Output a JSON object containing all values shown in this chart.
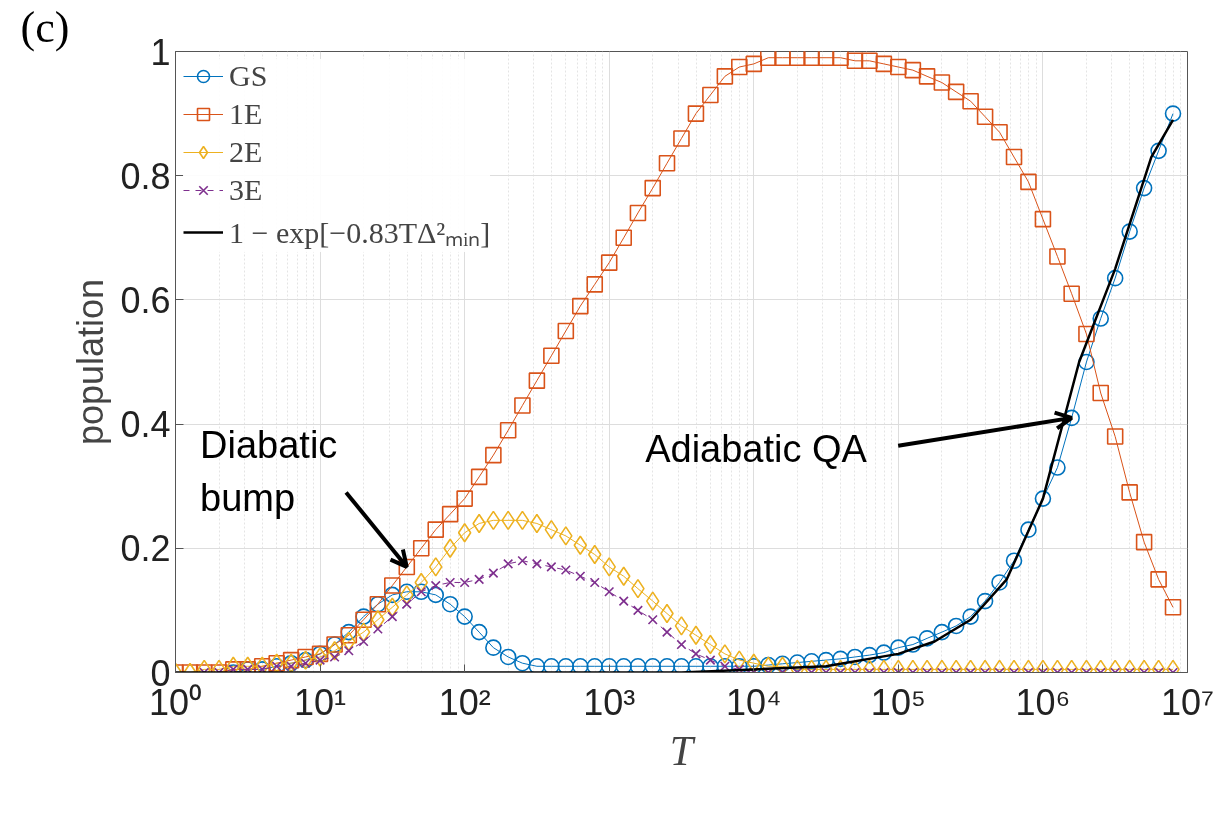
{
  "chart_data": {
    "type": "line",
    "xlabel": "T",
    "ylabel": "population",
    "log": "x",
    "grid": true,
    "legend": "top left",
    "xlim": [
      1,
      10000000
    ],
    "ylim": [
      0,
      1
    ],
    "xticks": [
      {
        "value": 1,
        "label": "10⁰"
      },
      {
        "value": 10,
        "label": "10¹"
      },
      {
        "value": 100,
        "label": "10²"
      },
      {
        "value": 1000,
        "label": "10³"
      },
      {
        "value": 10000,
        "label": "10⁴"
      },
      {
        "value": 100000,
        "label": "10⁵"
      },
      {
        "value": 1000000,
        "label": "10⁶"
      },
      {
        "value": 10000000,
        "label": "10⁷"
      }
    ],
    "yticks": [
      0,
      0.2,
      0.4,
      0.6,
      0.8,
      1
    ],
    "x": [
      1,
      1.26,
      1.58,
      2,
      2.51,
      3.16,
      3.98,
      5.01,
      6.31,
      7.94,
      10,
      12.6,
      15.8,
      20,
      25.1,
      31.6,
      39.8,
      50.1,
      63.1,
      79.4,
      100,
      126,
      158,
      200,
      251,
      316,
      398,
      501,
      631,
      794,
      1000,
      1260,
      1580,
      2000,
      2510,
      3160,
      3980,
      5010,
      6310,
      7940,
      10000,
      12600,
      15800,
      20000,
      25100,
      31600,
      39800,
      50100,
      63100,
      79400,
      100000,
      126000,
      158000,
      200000,
      251000,
      316000,
      398000,
      501000,
      631000,
      794000,
      1000000,
      1260000,
      1580000,
      2000000,
      2510000,
      3160000,
      3980000,
      5010000,
      6310000,
      7940000
    ],
    "series": [
      {
        "name": "GS",
        "color": "#0072bd",
        "marker": "circle",
        "line_style": "solid",
        "values": [
          null,
          null,
          null,
          null,
          0,
          0.005,
          0.005,
          0.01,
          0.015,
          0.02,
          0.03,
          0.045,
          0.065,
          0.09,
          0.11,
          0.125,
          0.13,
          0.13,
          0.125,
          0.11,
          0.09,
          0.065,
          0.04,
          0.025,
          0.015,
          0.01,
          0.01,
          0.01,
          0.01,
          0.01,
          0.01,
          0.01,
          0.01,
          0.01,
          0.01,
          0.01,
          0.01,
          0.01,
          0.01,
          0.01,
          0.01,
          0.012,
          0.014,
          0.016,
          0.018,
          0.02,
          0.022,
          0.025,
          0.028,
          0.032,
          0.04,
          0.045,
          0.055,
          0.065,
          0.075,
          0.09,
          0.115,
          0.145,
          0.18,
          0.23,
          0.28,
          0.33,
          0.41,
          0.5,
          0.57,
          0.635,
          0.71,
          0.78,
          0.84,
          0.9
        ]
      },
      {
        "name": "1E",
        "color": "#d95319",
        "marker": "square",
        "line_style": "solid",
        "values": [
          0,
          0,
          0,
          0,
          0.005,
          0.005,
          0.01,
          0.015,
          0.02,
          0.025,
          0.03,
          0.045,
          0.06,
          0.085,
          0.11,
          0.14,
          0.17,
          0.2,
          0.23,
          0.255,
          0.28,
          0.315,
          0.35,
          0.39,
          0.43,
          0.47,
          0.51,
          0.55,
          0.59,
          0.625,
          0.66,
          0.7,
          0.74,
          0.78,
          0.82,
          0.86,
          0.9,
          0.93,
          0.96,
          0.975,
          0.98,
          0.99,
          0.99,
          0.99,
          0.99,
          0.99,
          0.99,
          0.985,
          0.985,
          0.98,
          0.975,
          0.97,
          0.96,
          0.95,
          0.935,
          0.92,
          0.895,
          0.87,
          0.83,
          0.79,
          0.73,
          0.67,
          0.61,
          0.545,
          0.45,
          0.38,
          0.29,
          0.21,
          0.15,
          0.105
        ]
      },
      {
        "name": "2E",
        "color": "#edb120",
        "marker": "diamond",
        "line_style": "solid",
        "values": [
          0,
          0,
          0.005,
          0.005,
          0.01,
          0.01,
          0.01,
          0.015,
          0.015,
          0.02,
          0.025,
          0.035,
          0.05,
          0.065,
          0.085,
          0.105,
          0.125,
          0.145,
          0.17,
          0.2,
          0.225,
          0.24,
          0.245,
          0.245,
          0.245,
          0.24,
          0.23,
          0.22,
          0.205,
          0.19,
          0.17,
          0.155,
          0.135,
          0.115,
          0.095,
          0.075,
          0.06,
          0.045,
          0.03,
          0.02,
          0.015,
          0.01,
          0.01,
          0.005,
          0.005,
          0.005,
          0.005,
          0.005,
          0.005,
          0.005,
          0.005,
          0.005,
          0.005,
          0.005,
          0.005,
          0.005,
          0.005,
          0.005,
          0.005,
          0.005,
          0.005,
          0.005,
          0.005,
          0.005,
          0.005,
          0.005,
          0.005,
          0.005,
          0.005,
          0.005
        ]
      },
      {
        "name": "3E",
        "color": "#7e2f8e",
        "marker": "cross",
        "line_style": "dashed",
        "values": [
          null,
          null,
          0,
          0,
          0.005,
          0.005,
          0.005,
          0.01,
          0.01,
          0.015,
          0.02,
          0.025,
          0.035,
          0.05,
          0.07,
          0.09,
          0.11,
          0.13,
          0.14,
          0.145,
          0.145,
          0.15,
          0.16,
          0.175,
          0.18,
          0.175,
          0.17,
          0.165,
          0.155,
          0.145,
          0.13,
          0.115,
          0.1,
          0.085,
          0.065,
          0.045,
          0.03,
          0.02,
          0.01,
          0.005,
          0,
          0,
          0,
          0,
          0,
          0,
          0,
          0,
          0,
          0,
          0,
          0,
          0,
          0,
          0,
          0,
          0,
          0,
          0,
          0,
          0,
          0,
          0,
          0,
          0,
          0,
          0,
          0,
          0,
          0
        ]
      },
      {
        "name": "1 − exp[−0.83TΔ²ₘᵢₙ]",
        "color": "#000000",
        "marker": "none",
        "line_style": "solid",
        "x": [
          1,
          10,
          100,
          1000,
          3160,
          10000,
          31600,
          100000,
          178000,
          316000,
          562000,
          1000000,
          1780000,
          3160000,
          5620000,
          7940000
        ],
        "values": [
          0,
          0,
          0,
          0,
          0,
          0.005,
          0.01,
          0.03,
          0.05,
          0.085,
          0.15,
          0.28,
          0.5,
          0.65,
          0.83,
          0.89
        ]
      }
    ],
    "annotations": [
      "(c)",
      {
        "text": "Diabatic\nbump",
        "x": 39.8,
        "y": 0.17
      },
      {
        "text": "Adiabatic QA",
        "x": 1580000,
        "y": 0.41
      }
    ]
  }
}
